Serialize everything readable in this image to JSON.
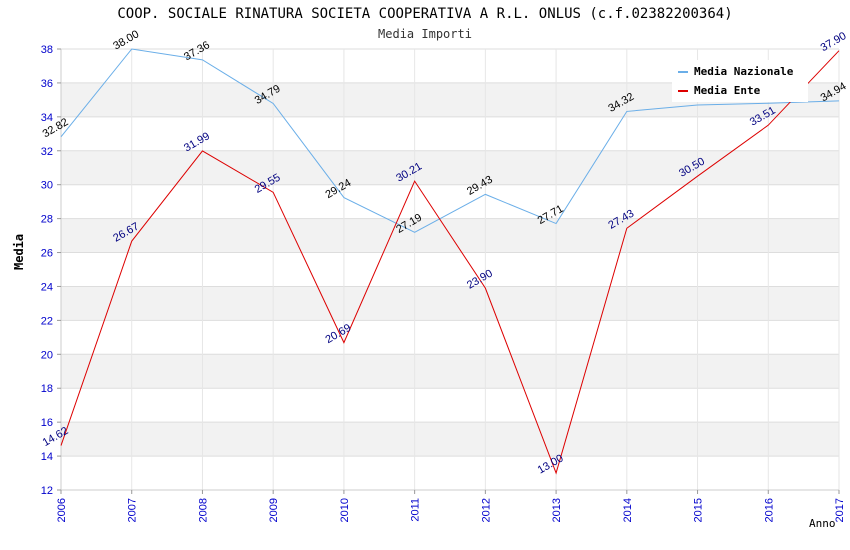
{
  "header": {
    "title": "COOP. SOCIALE RINATURA SOCIETA COOPERATIVA A R.L. ONLUS (c.f.02382200364)",
    "subtitle": "Media Importi"
  },
  "chart_data": {
    "type": "line",
    "title": "COOP. SOCIALE RINATURA SOCIETA COOPERATIVA A R.L. ONLUS (c.f.02382200364)",
    "subtitle": "Media Importi",
    "xlabel": "Anno",
    "ylabel": "Media",
    "x": [
      "2006",
      "2007",
      "2008",
      "2009",
      "2010",
      "2011",
      "2012",
      "2013",
      "2014",
      "2015",
      "2016",
      "2017"
    ],
    "ylim": [
      12,
      38
    ],
    "yticks": [
      12,
      14,
      16,
      18,
      20,
      22,
      24,
      26,
      28,
      30,
      32,
      34,
      36,
      38
    ],
    "grid": true,
    "legend_position": "top-right",
    "series": [
      {
        "name": "Media Nazionale",
        "color": "#6aaee8",
        "label_color": "#000000",
        "values": [
          32.82,
          38.0,
          37.36,
          34.79,
          29.24,
          27.19,
          29.43,
          27.71,
          34.32,
          34.7,
          34.8,
          34.94
        ],
        "labels": [
          "32.82",
          "38.00",
          "37.36",
          "34.79",
          "29.24",
          "27.19",
          "29.43",
          "27.71",
          "34.32",
          "",
          "",
          "34.94"
        ]
      },
      {
        "name": "Media Ente",
        "color": "#dd0000",
        "label_color": "#000080",
        "values": [
          14.62,
          26.67,
          31.99,
          29.55,
          20.69,
          30.21,
          23.9,
          13.0,
          27.43,
          30.5,
          33.51,
          37.9
        ],
        "labels": [
          "14.62",
          "26.67",
          "31.99",
          "29.55",
          "20.69",
          "30.21",
          "23.90",
          "13.00",
          "27.43",
          "30.50",
          "33.51",
          "37.90"
        ]
      }
    ]
  }
}
